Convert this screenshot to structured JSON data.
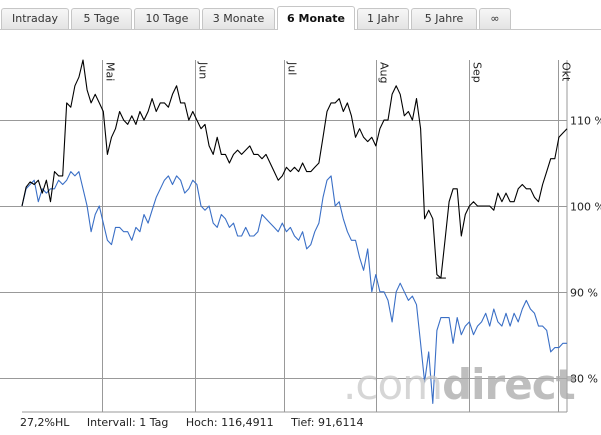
{
  "tabs": [
    {
      "label": "Intraday",
      "active": false
    },
    {
      "label": "5 Tage",
      "active": false
    },
    {
      "label": "10 Tage",
      "active": false
    },
    {
      "label": "3 Monate",
      "active": false
    },
    {
      "label": "6 Monate",
      "active": true
    },
    {
      "label": "1 Jahr",
      "active": false
    },
    {
      "label": "5 Jahre",
      "active": false
    },
    {
      "label": "∞",
      "active": false
    }
  ],
  "info": {
    "hl": "27,2%HL",
    "intervall": "Intervall: 1 Tag",
    "hoch": "Hoch: 116,4911",
    "tief": "Tief: 91,6114"
  },
  "brand": {
    "pre": ".com",
    "bold": "direct"
  },
  "colors": {
    "series_black": "#000000",
    "series_blue": "#3a6fc6",
    "grid": "#999999"
  },
  "chart_data": {
    "type": "line",
    "x_range": [
      "2016-04-04",
      "2016-10-04"
    ],
    "y_range": [
      76,
      117
    ],
    "y_ticks": [
      80,
      90,
      100,
      110
    ],
    "y_tick_labels": [
      "80 %",
      "90 %",
      "100 %",
      "110 %"
    ],
    "month_labels": [
      {
        "label": "Mai",
        "date": "2016-05-01"
      },
      {
        "label": "Jun",
        "date": "2016-06-01"
      },
      {
        "label": "Jul",
        "date": "2016-07-01"
      },
      {
        "label": "Aug",
        "date": "2016-08-01"
      },
      {
        "label": "Sep",
        "date": "2016-09-01"
      },
      {
        "label": "Okt",
        "date": "2016-10-01"
      }
    ],
    "grid": true,
    "series": [
      {
        "color": "#000000",
        "values": [
          [
            0,
            100
          ],
          [
            1,
            102.2
          ],
          [
            2,
            102.8
          ],
          [
            3,
            102.5
          ],
          [
            4,
            103
          ],
          [
            5,
            101.5
          ],
          [
            6,
            103
          ],
          [
            7,
            100.5
          ],
          [
            8,
            104
          ],
          [
            9,
            103.5
          ],
          [
            10,
            103.5
          ],
          [
            11,
            112
          ],
          [
            12,
            111.5
          ],
          [
            13,
            114
          ],
          [
            14,
            115
          ],
          [
            15,
            117
          ],
          [
            16,
            113.5
          ],
          [
            17,
            112
          ],
          [
            18,
            113
          ],
          [
            19,
            112
          ],
          [
            20,
            111
          ],
          [
            21,
            106
          ],
          [
            22,
            108
          ],
          [
            23,
            109
          ],
          [
            24,
            111
          ],
          [
            25,
            110
          ],
          [
            26,
            109.5
          ],
          [
            27,
            110.5
          ],
          [
            28,
            109.5
          ],
          [
            29,
            111
          ],
          [
            30,
            110
          ],
          [
            31,
            111
          ],
          [
            32,
            112.5
          ],
          [
            33,
            111
          ],
          [
            34,
            112
          ],
          [
            35,
            112
          ],
          [
            36,
            111.5
          ],
          [
            37,
            113
          ],
          [
            38,
            114
          ],
          [
            39,
            112
          ],
          [
            40,
            112
          ],
          [
            41,
            110
          ],
          [
            42,
            111
          ],
          [
            43,
            110
          ],
          [
            44,
            109
          ],
          [
            45,
            109.5
          ],
          [
            46,
            107
          ],
          [
            47,
            106
          ],
          [
            48,
            108
          ],
          [
            49,
            106
          ],
          [
            50,
            106
          ],
          [
            51,
            105
          ],
          [
            52,
            106
          ],
          [
            53,
            106.5
          ],
          [
            54,
            106
          ],
          [
            55,
            106.5
          ],
          [
            56,
            107
          ],
          [
            57,
            106
          ],
          [
            58,
            106
          ],
          [
            59,
            105.5
          ],
          [
            60,
            106
          ],
          [
            61,
            105
          ],
          [
            62,
            104
          ],
          [
            63,
            103
          ],
          [
            64,
            103.5
          ],
          [
            65,
            104.5
          ],
          [
            66,
            104
          ],
          [
            67,
            104.5
          ],
          [
            68,
            104
          ],
          [
            69,
            105
          ],
          [
            70,
            104
          ],
          [
            71,
            104
          ],
          [
            72,
            104.5
          ],
          [
            73,
            105
          ],
          [
            74,
            108
          ],
          [
            75,
            111
          ],
          [
            76,
            112
          ],
          [
            77,
            112
          ],
          [
            78,
            112.5
          ],
          [
            79,
            111
          ],
          [
            80,
            112
          ],
          [
            81,
            110.5
          ],
          [
            82,
            108
          ],
          [
            83,
            109
          ],
          [
            84,
            108
          ],
          [
            85,
            107.5
          ],
          [
            86,
            108
          ],
          [
            87,
            107
          ],
          [
            88,
            109
          ],
          [
            89,
            110
          ],
          [
            90,
            110
          ],
          [
            91,
            113
          ],
          [
            92,
            114
          ],
          [
            93,
            113
          ],
          [
            94,
            110.5
          ],
          [
            95,
            111
          ],
          [
            96,
            110
          ],
          [
            97,
            112.5
          ],
          [
            98,
            109
          ],
          [
            99,
            98.5
          ],
          [
            100,
            99.5
          ],
          [
            101,
            98.5
          ],
          [
            102,
            92
          ],
          [
            103,
            91.6
          ],
          [
            104,
            96
          ],
          [
            105,
            100.5
          ],
          [
            106,
            102
          ],
          [
            107,
            102
          ],
          [
            108,
            96.5
          ],
          [
            109,
            99
          ],
          [
            110,
            100
          ],
          [
            111,
            100.5
          ],
          [
            112,
            100
          ],
          [
            113,
            100
          ],
          [
            114,
            100
          ],
          [
            115,
            100
          ],
          [
            116,
            99.5
          ],
          [
            117,
            101.5
          ],
          [
            118,
            100.5
          ],
          [
            119,
            101.5
          ],
          [
            120,
            100.5
          ],
          [
            121,
            100.5
          ],
          [
            122,
            102
          ],
          [
            123,
            102.5
          ],
          [
            124,
            102
          ],
          [
            125,
            102
          ],
          [
            126,
            101
          ],
          [
            127,
            100.5
          ],
          [
            128,
            102.5
          ],
          [
            129,
            104
          ],
          [
            130,
            105.5
          ],
          [
            131,
            105.5
          ],
          [
            132,
            108
          ],
          [
            133,
            108.5
          ],
          [
            134,
            109
          ]
        ]
      },
      {
        "color": "#3a6fc6",
        "values": [
          [
            0,
            100
          ],
          [
            1,
            102
          ],
          [
            2,
            102.5
          ],
          [
            3,
            103
          ],
          [
            4,
            100.5
          ],
          [
            5,
            102
          ],
          [
            6,
            101.5
          ],
          [
            7,
            102
          ],
          [
            8,
            102
          ],
          [
            9,
            103
          ],
          [
            10,
            102.5
          ],
          [
            11,
            103
          ],
          [
            12,
            104
          ],
          [
            13,
            103.5
          ],
          [
            14,
            104
          ],
          [
            15,
            102
          ],
          [
            16,
            100
          ],
          [
            17,
            97
          ],
          [
            18,
            99
          ],
          [
            19,
            100
          ],
          [
            20,
            98
          ],
          [
            21,
            96
          ],
          [
            22,
            95.5
          ],
          [
            23,
            97.5
          ],
          [
            24,
            97.5
          ],
          [
            25,
            97
          ],
          [
            26,
            97
          ],
          [
            27,
            96
          ],
          [
            28,
            97.5
          ],
          [
            29,
            97
          ],
          [
            30,
            99
          ],
          [
            31,
            98
          ],
          [
            32,
            99.5
          ],
          [
            33,
            101
          ],
          [
            34,
            102
          ],
          [
            35,
            103
          ],
          [
            36,
            103.5
          ],
          [
            37,
            102.5
          ],
          [
            38,
            103.5
          ],
          [
            39,
            103
          ],
          [
            40,
            101.5
          ],
          [
            41,
            102
          ],
          [
            42,
            103
          ],
          [
            43,
            102.5
          ],
          [
            44,
            100
          ],
          [
            45,
            99.5
          ],
          [
            46,
            100
          ],
          [
            47,
            98
          ],
          [
            48,
            97.5
          ],
          [
            49,
            99
          ],
          [
            50,
            98.5
          ],
          [
            51,
            97.5
          ],
          [
            52,
            98
          ],
          [
            53,
            96.5
          ],
          [
            54,
            96.5
          ],
          [
            55,
            97.5
          ],
          [
            56,
            96.5
          ],
          [
            57,
            96.5
          ],
          [
            58,
            97
          ],
          [
            59,
            99
          ],
          [
            60,
            98.5
          ],
          [
            61,
            98
          ],
          [
            62,
            97.5
          ],
          [
            63,
            97
          ],
          [
            64,
            98
          ],
          [
            65,
            97
          ],
          [
            66,
            97.5
          ],
          [
            67,
            96.5
          ],
          [
            68,
            96
          ],
          [
            69,
            97
          ],
          [
            70,
            95
          ],
          [
            71,
            95.5
          ],
          [
            72,
            97
          ],
          [
            73,
            98
          ],
          [
            74,
            101
          ],
          [
            75,
            103
          ],
          [
            76,
            103.5
          ],
          [
            77,
            100
          ],
          [
            78,
            100.5
          ],
          [
            79,
            98.5
          ],
          [
            80,
            97
          ],
          [
            81,
            96
          ],
          [
            82,
            96
          ],
          [
            83,
            94
          ],
          [
            84,
            92.5
          ],
          [
            85,
            95
          ],
          [
            86,
            90
          ],
          [
            87,
            92
          ],
          [
            88,
            90
          ],
          [
            89,
            90
          ],
          [
            90,
            89
          ],
          [
            91,
            86.5
          ],
          [
            92,
            90
          ],
          [
            93,
            91
          ],
          [
            94,
            90
          ],
          [
            95,
            89
          ],
          [
            96,
            89.5
          ],
          [
            97,
            88.5
          ],
          [
            98,
            84
          ],
          [
            99,
            79.5
          ],
          [
            100,
            83
          ],
          [
            101,
            77
          ],
          [
            102,
            85.5
          ],
          [
            103,
            87
          ],
          [
            104,
            87
          ],
          [
            105,
            87
          ],
          [
            106,
            84
          ],
          [
            107,
            87
          ],
          [
            108,
            85
          ],
          [
            109,
            86
          ],
          [
            110,
            86.5
          ],
          [
            111,
            85
          ],
          [
            112,
            86
          ],
          [
            113,
            86.5
          ],
          [
            114,
            87.5
          ],
          [
            115,
            86
          ],
          [
            116,
            88
          ],
          [
            117,
            86.5
          ],
          [
            118,
            86
          ],
          [
            119,
            87.5
          ],
          [
            120,
            86
          ],
          [
            121,
            87.5
          ],
          [
            122,
            86.5
          ],
          [
            123,
            88
          ],
          [
            124,
            89
          ],
          [
            125,
            88
          ],
          [
            126,
            87.5
          ],
          [
            127,
            86
          ],
          [
            128,
            86
          ],
          [
            129,
            85.5
          ],
          [
            130,
            83
          ],
          [
            131,
            83.5
          ],
          [
            132,
            83.5
          ],
          [
            133,
            84
          ],
          [
            134,
            84
          ]
        ]
      }
    ]
  }
}
